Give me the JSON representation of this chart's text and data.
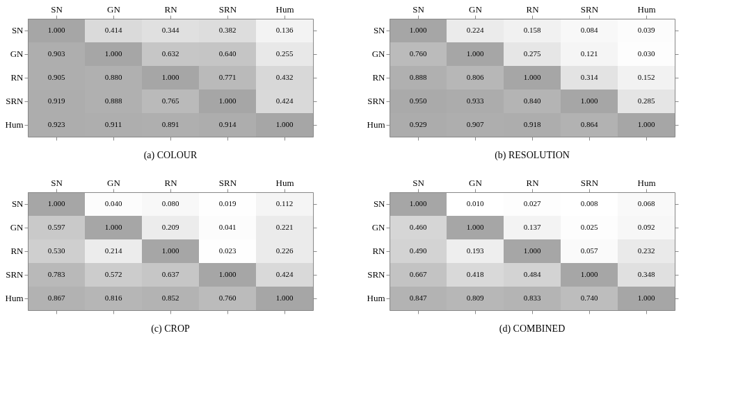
{
  "chart_data": [
    {
      "type": "heatmap",
      "title": "(a) COLOUR",
      "categories": [
        "SN",
        "GN",
        "RN",
        "SRN",
        "Hum"
      ],
      "y_categories": [
        "SN",
        "GN",
        "RN",
        "SRN",
        "Hum"
      ],
      "grid": false,
      "cells": [
        [
          1.0,
          0.414,
          0.344,
          0.382,
          0.136
        ],
        [
          0.903,
          1.0,
          0.632,
          0.64,
          0.255
        ],
        [
          0.905,
          0.88,
          1.0,
          0.771,
          0.432
        ],
        [
          0.919,
          0.888,
          0.765,
          1.0,
          0.424
        ],
        [
          0.923,
          0.911,
          0.891,
          0.914,
          1.0
        ]
      ],
      "cell_labels": [
        [
          "1.000",
          "0.414",
          "0.344",
          "0.382",
          "0.136"
        ],
        [
          "0.903",
          "1.000",
          "0.632",
          "0.640",
          "0.255"
        ],
        [
          "0.905",
          "0.880",
          "1.000",
          "0.771",
          "0.432"
        ],
        [
          "0.919",
          "0.888",
          "0.765",
          "1.000",
          "0.424"
        ],
        [
          "0.923",
          "0.911",
          "0.891",
          "0.914",
          "1.000"
        ]
      ]
    },
    {
      "type": "heatmap",
      "title": "(b) RESOLUTION",
      "categories": [
        "SN",
        "GN",
        "RN",
        "SRN",
        "Hum"
      ],
      "y_categories": [
        "SN",
        "GN",
        "RN",
        "SRN",
        "Hum"
      ],
      "grid": false,
      "cells": [
        [
          1.0,
          0.224,
          0.158,
          0.084,
          0.039
        ],
        [
          0.76,
          1.0,
          0.275,
          0.121,
          0.03
        ],
        [
          0.888,
          0.806,
          1.0,
          0.314,
          0.152
        ],
        [
          0.95,
          0.933,
          0.84,
          1.0,
          0.285
        ],
        [
          0.929,
          0.907,
          0.918,
          0.864,
          1.0
        ]
      ],
      "cell_labels": [
        [
          "1.000",
          "0.224",
          "0.158",
          "0.084",
          "0.039"
        ],
        [
          "0.760",
          "1.000",
          "0.275",
          "0.121",
          "0.030"
        ],
        [
          "0.888",
          "0.806",
          "1.000",
          "0.314",
          "0.152"
        ],
        [
          "0.950",
          "0.933",
          "0.840",
          "1.000",
          "0.285"
        ],
        [
          "0.929",
          "0.907",
          "0.918",
          "0.864",
          "1.000"
        ]
      ]
    },
    {
      "type": "heatmap",
      "title": "(c) CROP",
      "categories": [
        "SN",
        "GN",
        "RN",
        "SRN",
        "Hum"
      ],
      "y_categories": [
        "SN",
        "GN",
        "RN",
        "SRN",
        "Hum"
      ],
      "grid": false,
      "cells": [
        [
          1.0,
          0.04,
          0.08,
          0.019,
          0.112
        ],
        [
          0.597,
          1.0,
          0.209,
          0.041,
          0.221
        ],
        [
          0.53,
          0.214,
          1.0,
          0.023,
          0.226
        ],
        [
          0.783,
          0.572,
          0.637,
          1.0,
          0.424
        ],
        [
          0.867,
          0.816,
          0.852,
          0.76,
          1.0
        ]
      ],
      "cell_labels": [
        [
          "1.000",
          "0.040",
          "0.080",
          "0.019",
          "0.112"
        ],
        [
          "0.597",
          "1.000",
          "0.209",
          "0.041",
          "0.221"
        ],
        [
          "0.530",
          "0.214",
          "1.000",
          "0.023",
          "0.226"
        ],
        [
          "0.783",
          "0.572",
          "0.637",
          "1.000",
          "0.424"
        ],
        [
          "0.867",
          "0.816",
          "0.852",
          "0.760",
          "1.000"
        ]
      ]
    },
    {
      "type": "heatmap",
      "title": "(d) COMBINED",
      "categories": [
        "SN",
        "GN",
        "RN",
        "SRN",
        "Hum"
      ],
      "y_categories": [
        "SN",
        "GN",
        "RN",
        "SRN",
        "Hum"
      ],
      "grid": false,
      "cells": [
        [
          1.0,
          0.01,
          0.027,
          0.008,
          0.068
        ],
        [
          0.46,
          1.0,
          0.137,
          0.025,
          0.092
        ],
        [
          0.49,
          0.193,
          1.0,
          0.057,
          0.232
        ],
        [
          0.667,
          0.418,
          0.484,
          1.0,
          0.348
        ],
        [
          0.847,
          0.809,
          0.833,
          0.74,
          1.0
        ]
      ],
      "cell_labels": [
        [
          "1.000",
          "0.010",
          "0.027",
          "0.008",
          "0.068"
        ],
        [
          "0.460",
          "1.000",
          "0.137",
          "0.025",
          "0.092"
        ],
        [
          "0.490",
          "0.193",
          "1.000",
          "0.057",
          "0.232"
        ],
        [
          "0.667",
          "0.418",
          "0.484",
          "1.000",
          "0.348"
        ],
        [
          "0.847",
          "0.809",
          "0.833",
          "0.740",
          "1.000"
        ]
      ]
    }
  ]
}
